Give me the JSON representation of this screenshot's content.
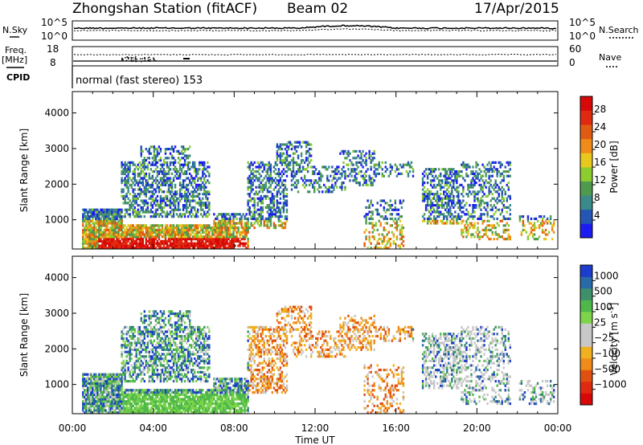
{
  "header": {
    "station": "Zhongshan Station (fitACF)",
    "beam": "Beam 02",
    "date": "17/Apr/2015"
  },
  "noise_panel": {
    "left_label": "N.Sky",
    "right_label": "N.Search",
    "left_ticks": [
      "10^5",
      "10^0"
    ],
    "right_ticks": [
      "10^5",
      "10^0"
    ]
  },
  "freq_panel": {
    "left_label_1": "Freq.",
    "left_label_2": "[MHz]",
    "left_ticks": [
      "18",
      "8"
    ],
    "right_ticks": [
      "60",
      "0"
    ],
    "right_label": "Nave"
  },
  "cpid_panel": {
    "label": "CPID",
    "text": "normal (fast stereo) 153"
  },
  "chart_data": [
    {
      "type": "heatmap",
      "panel": "power",
      "ylabel": "Slant Range [km]",
      "ylim": [
        180,
        4600
      ],
      "y_ticks": [
        1000,
        2000,
        3000,
        4000
      ],
      "x_ticks": [
        "00:00",
        "04:00",
        "08:00",
        "12:00",
        "16:00",
        "20:00",
        "00:00"
      ],
      "colorbar": {
        "label": "Power [dB]",
        "ticks": [
          "4",
          "8",
          "12",
          "16",
          "20",
          "24",
          "28"
        ],
        "colors": [
          "#1c1cf2",
          "#2456b4",
          "#3a8a8a",
          "#4f9a4f",
          "#8ccc2e",
          "#e8c81c",
          "#f08a18",
          "#e05c12",
          "#e02a10",
          "#d60808"
        ]
      }
    },
    {
      "type": "heatmap",
      "panel": "velocity",
      "ylabel": "Slant Range [km]",
      "ylim": [
        180,
        4600
      ],
      "y_ticks": [
        1000,
        2000,
        3000,
        4000
      ],
      "x_ticks": [
        "00:00",
        "04:00",
        "08:00",
        "12:00",
        "16:00",
        "20:00",
        "00:00"
      ],
      "xlabel": "Time UT",
      "colorbar": {
        "label": "Velocity [m s",
        "label_exp": "-1",
        "label_close": "]",
        "ticks": [
          "1000",
          "500",
          "100",
          "25",
          "−25",
          "−100",
          "−500",
          "−1000"
        ],
        "colors": [
          "#1c3ccc",
          "#2a6aa8",
          "#3f8f6a",
          "#4fb84a",
          "#7cd44a",
          "#c8c8c8",
          "#c8c8c8",
          "#f0b020",
          "#f08a18",
          "#e05010",
          "#e02a10",
          "#d60808"
        ]
      }
    }
  ]
}
